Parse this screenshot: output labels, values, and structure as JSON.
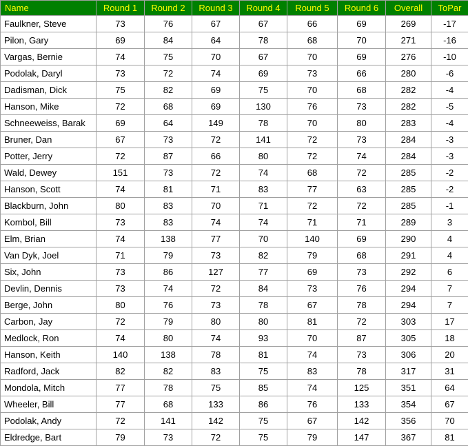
{
  "header_bg_color": "#008000",
  "header_text_color": "#ffff00",
  "columns": [
    "Name",
    "Round 1",
    "Round 2",
    "Round 3",
    "Round 4",
    "Round 5",
    "Round 6",
    "Overall",
    "ToPar"
  ],
  "rows": [
    {
      "name": "Faulkner, Steve",
      "r1": "73",
      "r2": "76",
      "r3": "67",
      "r4": "67",
      "r5": "66",
      "r6": "69",
      "overall": "269",
      "topar": "-17"
    },
    {
      "name": "Pilon, Gary",
      "r1": "69",
      "r2": "84",
      "r3": "64",
      "r4": "78",
      "r5": "68",
      "r6": "70",
      "overall": "271",
      "topar": "-16"
    },
    {
      "name": "Vargas, Bernie",
      "r1": "74",
      "r2": "75",
      "r3": "70",
      "r4": "67",
      "r5": "70",
      "r6": "69",
      "overall": "276",
      "topar": "-10"
    },
    {
      "name": "Podolak, Daryl",
      "r1": "73",
      "r2": "72",
      "r3": "74",
      "r4": "69",
      "r5": "73",
      "r6": "66",
      "overall": "280",
      "topar": "-6"
    },
    {
      "name": "Dadisman, Dick",
      "r1": "75",
      "r2": "82",
      "r3": "69",
      "r4": "75",
      "r5": "70",
      "r6": "68",
      "overall": "282",
      "topar": "-4"
    },
    {
      "name": "Hanson, Mike",
      "r1": "72",
      "r2": "68",
      "r3": "69",
      "r4": "130",
      "r5": "76",
      "r6": "73",
      "overall": "282",
      "topar": "-5"
    },
    {
      "name": "Schneeweiss, Barak",
      "r1": "69",
      "r2": "64",
      "r3": "149",
      "r4": "78",
      "r5": "70",
      "r6": "80",
      "overall": "283",
      "topar": "-4"
    },
    {
      "name": "Bruner, Dan",
      "r1": "67",
      "r2": "73",
      "r3": "72",
      "r4": "141",
      "r5": "72",
      "r6": "73",
      "overall": "284",
      "topar": "-3"
    },
    {
      "name": "Potter, Jerry",
      "r1": "72",
      "r2": "87",
      "r3": "66",
      "r4": "80",
      "r5": "72",
      "r6": "74",
      "overall": "284",
      "topar": "-3"
    },
    {
      "name": "Wald, Dewey",
      "r1": "151",
      "r2": "73",
      "r3": "72",
      "r4": "74",
      "r5": "68",
      "r6": "72",
      "overall": "285",
      "topar": "-2"
    },
    {
      "name": "Hanson, Scott",
      "r1": "74",
      "r2": "81",
      "r3": "71",
      "r4": "83",
      "r5": "77",
      "r6": "63",
      "overall": "285",
      "topar": "-2"
    },
    {
      "name": "Blackburn, John",
      "r1": "80",
      "r2": "83",
      "r3": "70",
      "r4": "71",
      "r5": "72",
      "r6": "72",
      "overall": "285",
      "topar": "-1"
    },
    {
      "name": "Kombol, Bill",
      "r1": "73",
      "r2": "83",
      "r3": "74",
      "r4": "74",
      "r5": "71",
      "r6": "71",
      "overall": "289",
      "topar": "3"
    },
    {
      "name": "Elm, Brian",
      "r1": "74",
      "r2": "138",
      "r3": "77",
      "r4": "70",
      "r5": "140",
      "r6": "69",
      "overall": "290",
      "topar": "4"
    },
    {
      "name": "Van Dyk, Joel",
      "r1": "71",
      "r2": "79",
      "r3": "73",
      "r4": "82",
      "r5": "79",
      "r6": "68",
      "overall": "291",
      "topar": "4"
    },
    {
      "name": "Six, John",
      "r1": "73",
      "r2": "86",
      "r3": "127",
      "r4": "77",
      "r5": "69",
      "r6": "73",
      "overall": "292",
      "topar": "6"
    },
    {
      "name": "Devlin, Dennis",
      "r1": "73",
      "r2": "74",
      "r3": "72",
      "r4": "84",
      "r5": "73",
      "r6": "76",
      "overall": "294",
      "topar": "7"
    },
    {
      "name": "Berge, John",
      "r1": "80",
      "r2": "76",
      "r3": "73",
      "r4": "78",
      "r5": "67",
      "r6": "78",
      "overall": "294",
      "topar": "7"
    },
    {
      "name": "Carbon, Jay",
      "r1": "72",
      "r2": "79",
      "r3": "80",
      "r4": "80",
      "r5": "81",
      "r6": "72",
      "overall": "303",
      "topar": "17"
    },
    {
      "name": "Medlock, Ron",
      "r1": "74",
      "r2": "80",
      "r3": "74",
      "r4": "93",
      "r5": "70",
      "r6": "87",
      "overall": "305",
      "topar": "18"
    },
    {
      "name": "Hanson, Keith",
      "r1": "140",
      "r2": "138",
      "r3": "78",
      "r4": "81",
      "r5": "74",
      "r6": "73",
      "overall": "306",
      "topar": "20"
    },
    {
      "name": "Radford, Jack",
      "r1": "82",
      "r2": "82",
      "r3": "83",
      "r4": "75",
      "r5": "83",
      "r6": "78",
      "overall": "317",
      "topar": "31"
    },
    {
      "name": "Mondola, Mitch",
      "r1": "77",
      "r2": "78",
      "r3": "75",
      "r4": "85",
      "r5": "74",
      "r6": "125",
      "overall": "351",
      "topar": "64"
    },
    {
      "name": "Wheeler, Bill",
      "r1": "77",
      "r2": "68",
      "r3": "133",
      "r4": "86",
      "r5": "76",
      "r6": "133",
      "overall": "354",
      "topar": "67"
    },
    {
      "name": "Podolak, Andy",
      "r1": "72",
      "r2": "141",
      "r3": "142",
      "r4": "75",
      "r5": "67",
      "r6": "142",
      "overall": "356",
      "topar": "70"
    },
    {
      "name": "Eldredge, Bart",
      "r1": "79",
      "r2": "73",
      "r3": "72",
      "r4": "75",
      "r5": "79",
      "r6": "147",
      "overall": "367",
      "topar": "81"
    }
  ]
}
